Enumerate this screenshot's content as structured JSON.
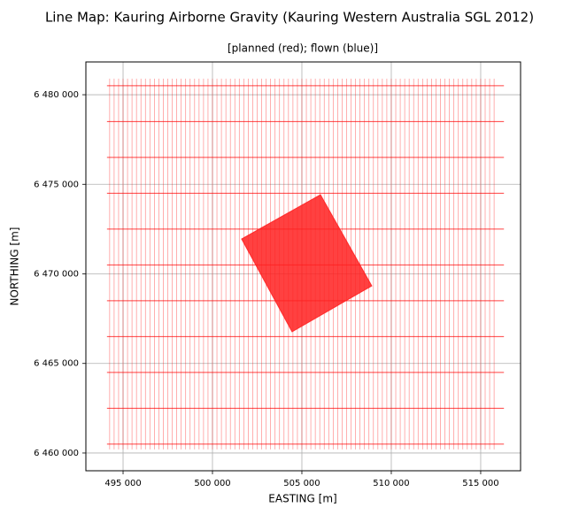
{
  "chart_data": {
    "type": "line",
    "title": "Line Map: Kauring Airborne Gravity (Kauring Western Australia SGL 2012)",
    "subtitle": "[planned (red); flown (blue)]",
    "x_label": "EASTING [m]",
    "y_label": "NORTHING [m]",
    "xlim": [
      492920,
      517230
    ],
    "ylim": [
      6459010,
      6481830
    ],
    "xticks": [
      {
        "value": 495000,
        "label": "495 000"
      },
      {
        "value": 500000,
        "label": "500 000"
      },
      {
        "value": 505000,
        "label": "505 000"
      },
      {
        "value": 510000,
        "label": "510 000"
      },
      {
        "value": 515000,
        "label": "515 000"
      }
    ],
    "yticks": [
      {
        "value": 6460000,
        "label": "6 460 000"
      },
      {
        "value": 6465000,
        "label": "6 465 000"
      },
      {
        "value": 6470000,
        "label": "6 470 000"
      },
      {
        "value": 6475000,
        "label": "6 475 000"
      },
      {
        "value": 6480000,
        "label": "6 480 000"
      }
    ],
    "grid": true,
    "series": [
      {
        "type": "segments",
        "color": "#ff0000",
        "opacity": 0.45,
        "width": 0.7,
        "x": [
          [
            494250,
            494250
          ],
          [
            494500,
            494500
          ],
          [
            494750,
            494750
          ],
          [
            495000,
            495000
          ],
          [
            495250,
            495250
          ],
          [
            495500,
            495500
          ],
          [
            495750,
            495750
          ],
          [
            496000,
            496000
          ],
          [
            496250,
            496250
          ],
          [
            496500,
            496500
          ],
          [
            496750,
            496750
          ],
          [
            497000,
            497000
          ],
          [
            497250,
            497250
          ],
          [
            497500,
            497500
          ],
          [
            497750,
            497750
          ],
          [
            498000,
            498000
          ],
          [
            498250,
            498250
          ],
          [
            498500,
            498500
          ],
          [
            498750,
            498750
          ],
          [
            499000,
            499000
          ],
          [
            499250,
            499250
          ],
          [
            499500,
            499500
          ],
          [
            499750,
            499750
          ],
          [
            500000,
            500000
          ],
          [
            500250,
            500250
          ],
          [
            500500,
            500500
          ],
          [
            500750,
            500750
          ],
          [
            501000,
            501000
          ],
          [
            501250,
            501250
          ],
          [
            501500,
            501500
          ],
          [
            501750,
            501750
          ],
          [
            502000,
            502000
          ],
          [
            502250,
            502250
          ],
          [
            502500,
            502500
          ],
          [
            502750,
            502750
          ],
          [
            503000,
            503000
          ],
          [
            503250,
            503250
          ],
          [
            503500,
            503500
          ],
          [
            503750,
            503750
          ],
          [
            504000,
            504000
          ],
          [
            504250,
            504250
          ],
          [
            504500,
            504500
          ],
          [
            504750,
            504750
          ],
          [
            505000,
            505000
          ],
          [
            505250,
            505250
          ],
          [
            505500,
            505500
          ],
          [
            505750,
            505750
          ],
          [
            506000,
            506000
          ],
          [
            506250,
            506250
          ],
          [
            506500,
            506500
          ],
          [
            506750,
            506750
          ],
          [
            507000,
            507000
          ],
          [
            507250,
            507250
          ],
          [
            507500,
            507500
          ],
          [
            507750,
            507750
          ],
          [
            508000,
            508000
          ],
          [
            508250,
            508250
          ],
          [
            508500,
            508500
          ],
          [
            508750,
            508750
          ],
          [
            509000,
            509000
          ],
          [
            509250,
            509250
          ],
          [
            509500,
            509500
          ],
          [
            509750,
            509750
          ],
          [
            510000,
            510000
          ],
          [
            510250,
            510250
          ],
          [
            510500,
            510500
          ],
          [
            510750,
            510750
          ],
          [
            511000,
            511000
          ],
          [
            511250,
            511250
          ],
          [
            511500,
            511500
          ],
          [
            511750,
            511750
          ],
          [
            512000,
            512000
          ],
          [
            512250,
            512250
          ],
          [
            512500,
            512500
          ],
          [
            512750,
            512750
          ],
          [
            513000,
            513000
          ],
          [
            513250,
            513250
          ],
          [
            513500,
            513500
          ],
          [
            513750,
            513750
          ],
          [
            514000,
            514000
          ],
          [
            514250,
            514250
          ],
          [
            514500,
            514500
          ],
          [
            514750,
            514750
          ],
          [
            515000,
            515000
          ],
          [
            515250,
            515250
          ],
          [
            515500,
            515500
          ],
          [
            515750,
            515750
          ]
        ],
        "y": [
          [
            6460200,
            6480900
          ],
          [
            6460200,
            6480900
          ],
          [
            6460200,
            6480900
          ],
          [
            6460200,
            6480900
          ],
          [
            6460200,
            6480900
          ],
          [
            6460200,
            6480900
          ],
          [
            6460200,
            6480900
          ],
          [
            6460200,
            6480900
          ],
          [
            6460200,
            6480900
          ],
          [
            6460200,
            6480900
          ],
          [
            6460200,
            6480900
          ],
          [
            6460200,
            6480900
          ],
          [
            6460200,
            6480900
          ],
          [
            6460200,
            6480900
          ],
          [
            6460200,
            6480900
          ],
          [
            6460200,
            6480900
          ],
          [
            6460200,
            6480900
          ],
          [
            6460200,
            6480900
          ],
          [
            6460200,
            6480900
          ],
          [
            6460200,
            6480900
          ],
          [
            6460200,
            6480900
          ],
          [
            6460200,
            6480900
          ],
          [
            6460200,
            6480900
          ],
          [
            6460200,
            6480900
          ],
          [
            6460200,
            6480900
          ],
          [
            6460200,
            6480900
          ],
          [
            6460200,
            6480900
          ],
          [
            6460200,
            6480900
          ],
          [
            6460200,
            6480900
          ],
          [
            6460200,
            6480900
          ],
          [
            6460200,
            6480900
          ],
          [
            6460200,
            6480900
          ],
          [
            6460200,
            6480900
          ],
          [
            6460200,
            6480900
          ],
          [
            6460200,
            6480900
          ],
          [
            6460200,
            6480900
          ],
          [
            6460200,
            6480900
          ],
          [
            6460200,
            6480900
          ],
          [
            6460200,
            6480900
          ],
          [
            6460200,
            6480900
          ],
          [
            6460200,
            6480900
          ],
          [
            6460200,
            6480900
          ],
          [
            6460200,
            6480900
          ],
          [
            6460200,
            6480900
          ],
          [
            6460200,
            6480900
          ],
          [
            6460200,
            6480900
          ],
          [
            6460200,
            6480900
          ],
          [
            6460200,
            6480900
          ],
          [
            6460200,
            6480900
          ],
          [
            6460200,
            6480900
          ],
          [
            6460200,
            6480900
          ],
          [
            6460200,
            6480900
          ],
          [
            6460200,
            6480900
          ],
          [
            6460200,
            6480900
          ],
          [
            6460200,
            6480900
          ],
          [
            6460200,
            6480900
          ],
          [
            6460200,
            6480900
          ],
          [
            6460200,
            6480900
          ],
          [
            6460200,
            6480900
          ],
          [
            6460200,
            6480900
          ],
          [
            6460200,
            6480900
          ],
          [
            6460200,
            6480900
          ],
          [
            6460200,
            6480900
          ],
          [
            6460200,
            6480900
          ],
          [
            6460200,
            6480900
          ],
          [
            6460200,
            6480900
          ],
          [
            6460200,
            6480900
          ],
          [
            6460200,
            6480900
          ],
          [
            6460200,
            6480900
          ],
          [
            6460200,
            6480900
          ],
          [
            6460200,
            6480900
          ],
          [
            6460200,
            6480900
          ],
          [
            6460200,
            6480900
          ],
          [
            6460200,
            6480900
          ],
          [
            6460200,
            6480900
          ],
          [
            6460200,
            6480900
          ],
          [
            6460200,
            6480900
          ],
          [
            6460200,
            6480900
          ],
          [
            6460200,
            6480900
          ],
          [
            6460200,
            6480900
          ],
          [
            6460200,
            6480900
          ],
          [
            6460200,
            6480900
          ],
          [
            6460200,
            6480900
          ],
          [
            6460200,
            6480900
          ],
          [
            6460200,
            6480900
          ],
          [
            6460200,
            6480900
          ],
          [
            6460200,
            6480900
          ]
        ]
      },
      {
        "type": "segments",
        "color": "#ff0000",
        "opacity": 0.75,
        "width": 1,
        "x": [
          [
            494100,
            516300
          ],
          [
            494100,
            516300
          ],
          [
            494100,
            516300
          ],
          [
            494100,
            516300
          ],
          [
            494100,
            516300
          ],
          [
            494100,
            516300
          ],
          [
            494100,
            516300
          ],
          [
            494100,
            516300
          ],
          [
            494100,
            516300
          ],
          [
            494100,
            516300
          ],
          [
            494100,
            516300
          ]
        ],
        "y": [
          [
            6460500,
            6460500
          ],
          [
            6462500,
            6462500
          ],
          [
            6464500,
            6464500
          ],
          [
            6466500,
            6466500
          ],
          [
            6468500,
            6468500
          ],
          [
            6470500,
            6470500
          ],
          [
            6472500,
            6472500
          ],
          [
            6474500,
            6474500
          ],
          [
            6476500,
            6476500
          ],
          [
            6478500,
            6478500
          ],
          [
            6480500,
            6480500
          ]
        ]
      },
      {
        "type": "polygon",
        "color": "#ff2020",
        "opacity": 0.85,
        "x": [
          501630,
          506040,
          508910,
          504450
        ],
        "y": [
          6471950,
          6474420,
          6469330,
          6466770
        ]
      }
    ]
  }
}
